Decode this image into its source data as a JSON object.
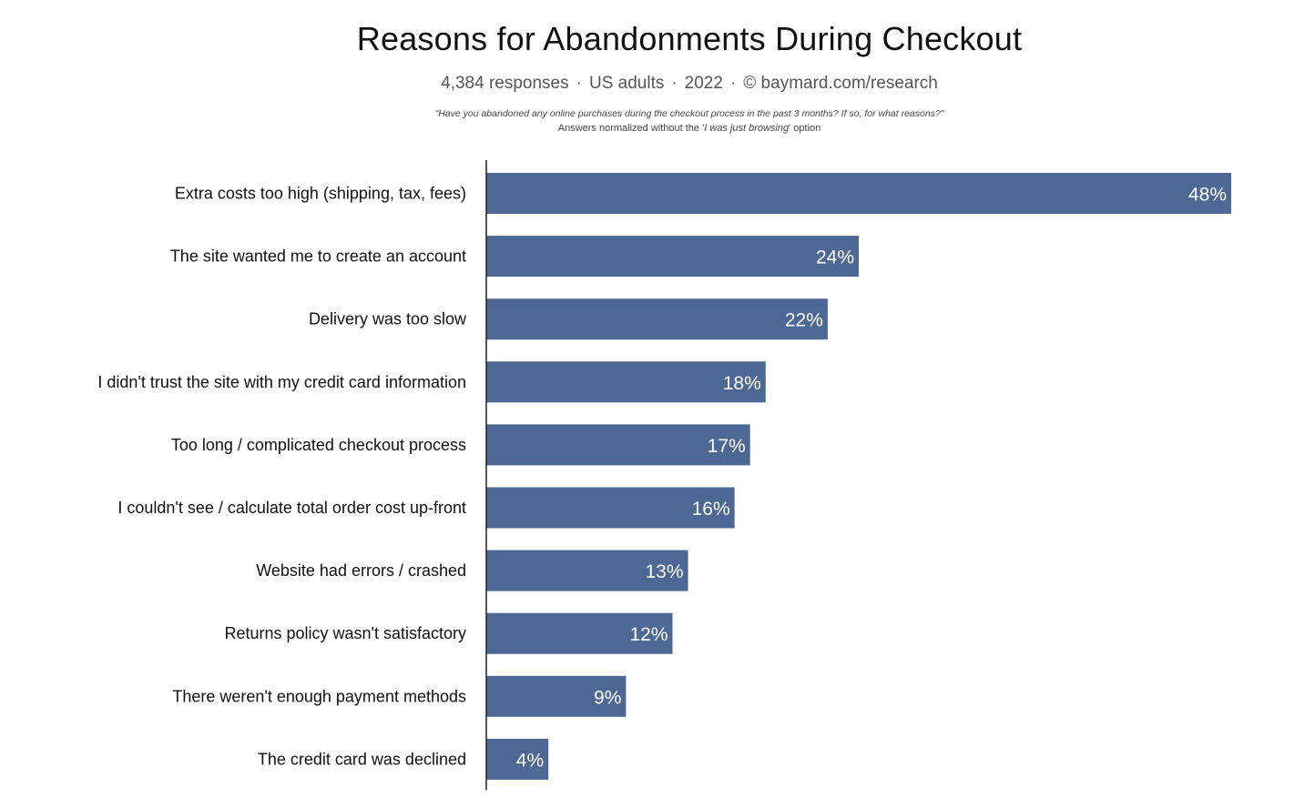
{
  "title": "Reasons for Abandonments During Checkout",
  "subtitle": {
    "responses": "4,384 responses",
    "population": "US adults",
    "year": "2022",
    "source": "© baymard.com/research",
    "separator": "·"
  },
  "question": "\"Have you abandoned any online purchases during the checkout process in the past 3 months? If so, for what reasons?\"",
  "note": {
    "prefix": "Answers normalized without the '",
    "emphasis": "I was just browsing",
    "suffix": "' option"
  },
  "chart_data": {
    "type": "bar",
    "orientation": "horizontal",
    "title": "Reasons for Abandonments During Checkout",
    "categories": [
      "Extra costs too high (shipping, tax, fees)",
      "The site wanted me to create an account",
      "Delivery was too slow",
      "I didn't trust the site with my credit card information",
      "Too long / complicated checkout process",
      "I couldn't see / calculate total order cost up-front",
      "Website had errors / crashed",
      "Returns policy wasn't satisfactory",
      "There weren't enough payment methods",
      "The credit card was declined"
    ],
    "values": [
      48,
      24,
      22,
      18,
      17,
      16,
      13,
      12,
      9,
      4
    ],
    "value_labels": [
      "48%",
      "24%",
      "22%",
      "18%",
      "17%",
      "16%",
      "13%",
      "12%",
      "9%",
      "4%"
    ],
    "unit": "%",
    "xlim": [
      0,
      48
    ],
    "grid": false,
    "legend": "none",
    "bar_color": "#4d6894",
    "axis_color": "#222222"
  }
}
